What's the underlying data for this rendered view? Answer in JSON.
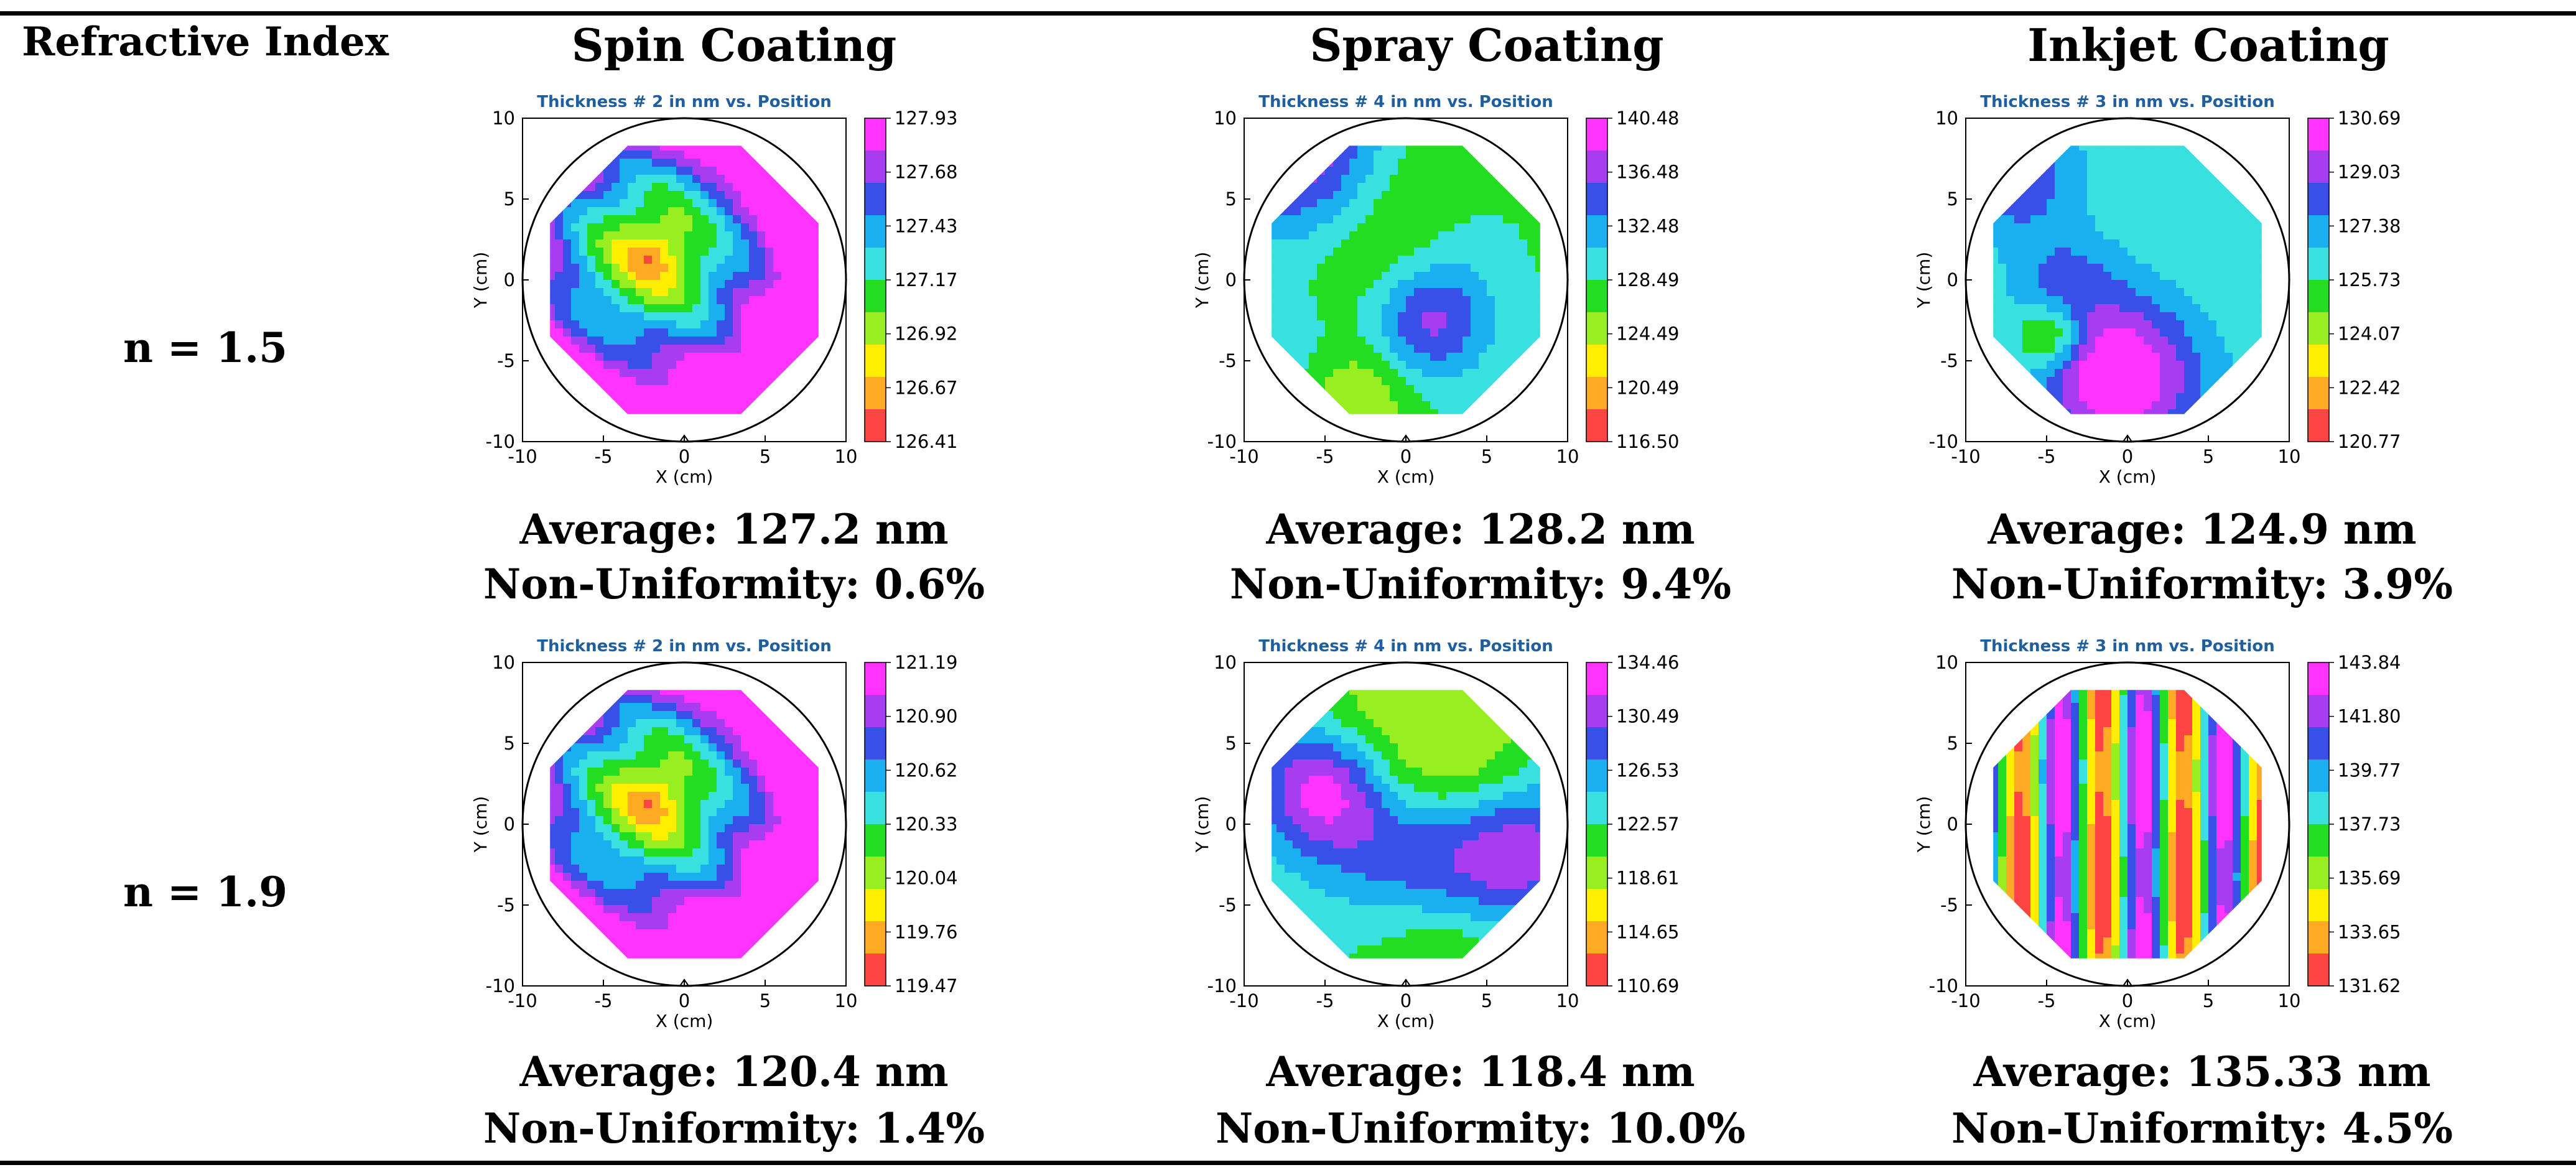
{
  "table": {
    "row_header": "Refractive Index",
    "columns": [
      "Spin Coating",
      "Spray Coating",
      "Inkjet Coating"
    ],
    "rows": [
      {
        "label": "n = 1.5"
      },
      {
        "label": "n = 1.9"
      }
    ]
  },
  "chart_data": [
    {
      "type": "heatmap",
      "method": "Spin Coating",
      "index": "n = 1.5",
      "title": "Thickness # 2 in nm vs. Position",
      "xlabel": "X (cm)",
      "ylabel": "Y (cm)",
      "xlim": [
        -10,
        10
      ],
      "ylim": [
        -10,
        10
      ],
      "xticks": [
        "-10",
        "-5",
        "0",
        "5",
        "10"
      ],
      "yticks": [
        "10",
        "5",
        "0",
        "-5",
        "-10"
      ],
      "colorbar": [
        "127.93",
        "127.68",
        "127.43",
        "127.17",
        "126.92",
        "126.67",
        "126.41"
      ],
      "average": "Average: 127.2 nm",
      "nonuniformity": "Non-Uniformity: 0.6%"
    },
    {
      "type": "heatmap",
      "method": "Spray Coating",
      "index": "n = 1.5",
      "title": "Thickness # 4 in nm vs. Position",
      "xlabel": "X (cm)",
      "ylabel": "Y (cm)",
      "xlim": [
        -10,
        10
      ],
      "ylim": [
        -10,
        10
      ],
      "xticks": [
        "-10",
        "-5",
        "0",
        "5",
        "10"
      ],
      "yticks": [
        "10",
        "5",
        "0",
        "-5",
        "-10"
      ],
      "colorbar": [
        "140.48",
        "136.48",
        "132.48",
        "128.49",
        "124.49",
        "120.49",
        "116.50"
      ],
      "average": "Average: 128.2 nm",
      "nonuniformity": "Non-Uniformity: 9.4%"
    },
    {
      "type": "heatmap",
      "method": "Inkjet Coating",
      "index": "n = 1.5",
      "title": "Thickness # 3 in nm vs. Position",
      "xlabel": "X (cm)",
      "ylabel": "Y (cm)",
      "xlim": [
        -10,
        10
      ],
      "ylim": [
        -10,
        10
      ],
      "xticks": [
        "-10",
        "-5",
        "0",
        "5",
        "10"
      ],
      "yticks": [
        "10",
        "5",
        "0",
        "-5",
        "-10"
      ],
      "colorbar": [
        "130.69",
        "129.03",
        "127.38",
        "125.73",
        "124.07",
        "122.42",
        "120.77"
      ],
      "average": "Average: 124.9 nm",
      "nonuniformity": "Non-Uniformity: 3.9%"
    },
    {
      "type": "heatmap",
      "method": "Spin Coating",
      "index": "n = 1.9",
      "title": "Thickness # 2 in nm vs. Position",
      "xlabel": "X (cm)",
      "ylabel": "Y (cm)",
      "xlim": [
        -10,
        10
      ],
      "ylim": [
        -10,
        10
      ],
      "xticks": [
        "-10",
        "-5",
        "0",
        "5",
        "10"
      ],
      "yticks": [
        "10",
        "5",
        "0",
        "-5",
        "-10"
      ],
      "colorbar": [
        "121.19",
        "120.90",
        "120.62",
        "120.33",
        "120.04",
        "119.76",
        "119.47"
      ],
      "average": "Average: 120.4 nm",
      "nonuniformity": "Non-Uniformity: 1.4%"
    },
    {
      "type": "heatmap",
      "method": "Spray Coating",
      "index": "n = 1.9",
      "title": "Thickness # 4 in nm vs. Position",
      "xlabel": "X (cm)",
      "ylabel": "Y (cm)",
      "xlim": [
        -10,
        10
      ],
      "ylim": [
        -10,
        10
      ],
      "xticks": [
        "-10",
        "-5",
        "0",
        "5",
        "10"
      ],
      "yticks": [
        "10",
        "5",
        "0",
        "-5",
        "-10"
      ],
      "colorbar": [
        "134.46",
        "130.49",
        "126.53",
        "122.57",
        "118.61",
        "114.65",
        "110.69"
      ],
      "average": "Average: 118.4 nm",
      "nonuniformity": "Non-Uniformity: 10.0%"
    },
    {
      "type": "heatmap",
      "method": "Inkjet Coating",
      "index": "n = 1.9",
      "title": "Thickness # 3 in nm vs. Position",
      "xlabel": "X (cm)",
      "ylabel": "Y (cm)",
      "xlim": [
        -10,
        10
      ],
      "ylim": [
        -10,
        10
      ],
      "xticks": [
        "-10",
        "-5",
        "0",
        "5",
        "10"
      ],
      "yticks": [
        "10",
        "5",
        "0",
        "-5",
        "-10"
      ],
      "colorbar": [
        "143.84",
        "141.80",
        "139.77",
        "137.73",
        "135.69",
        "133.65",
        "131.62"
      ],
      "average": "Average: 135.33 nm",
      "nonuniformity": "Non-Uniformity: 4.5%"
    }
  ],
  "colors": {
    "scale": [
      "#ff33ff",
      "#a83cf0",
      "#3850e8",
      "#1ab0f0",
      "#38e0e0",
      "#22dd22",
      "#99ee22",
      "#ffee00",
      "#ffaa22",
      "#ff4444"
    ],
    "title": "#1f5fa0"
  }
}
